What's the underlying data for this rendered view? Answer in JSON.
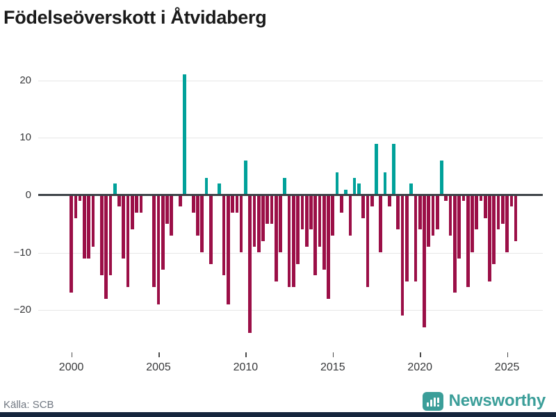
{
  "title": "Födelseöverskott i Åtvidaberg",
  "source": "Källa: SCB",
  "brand": {
    "name": "Newsworthy",
    "color": "#3b9e99",
    "icon": "speech-bubble-bar-chart-icon"
  },
  "colors": {
    "positive_bar": "#00a19a",
    "negative_bar": "#9b0f47",
    "zero_line": "#3d4247",
    "gridline": "#e6e6e6",
    "title_text": "#1a1a1a",
    "axis_text": "#37383a",
    "source_text": "#707781",
    "bottom_strip": "#15253c",
    "background": "#ffffff"
  },
  "chart_data": {
    "type": "bar",
    "title": "Födelseöverskott i Åtvidaberg",
    "xlabel": "",
    "ylabel": "",
    "period": "quarterly",
    "start_year": 2000,
    "start_quarter": 1,
    "ylim": [
      -27,
      23
    ],
    "grid": "horizontal",
    "y_ticks": [
      {
        "value": 20,
        "label": "20"
      },
      {
        "value": 10,
        "label": "10"
      },
      {
        "value": 0,
        "label": "0"
      },
      {
        "value": -10,
        "label": "−10"
      },
      {
        "value": -20,
        "label": "−20"
      }
    ],
    "x_ticks": [
      {
        "year": 2000,
        "label": "2000"
      },
      {
        "year": 2005,
        "label": "2005"
      },
      {
        "year": 2010,
        "label": "2010"
      },
      {
        "year": 2015,
        "label": "2015"
      },
      {
        "year": 2020,
        "label": "2020"
      },
      {
        "year": 2025,
        "label": "2025"
      }
    ],
    "series": [
      {
        "name": "Födelseöverskott",
        "values": [
          -17,
          -4,
          -1,
          -11,
          -11,
          -9,
          0,
          -14,
          -18,
          -14,
          2,
          -2,
          -11,
          -16,
          -6,
          -3,
          -3,
          0,
          0,
          -16,
          -19,
          -13,
          -5,
          -7,
          0,
          -2,
          21,
          0,
          -3,
          -7,
          -10,
          3,
          -12,
          0,
          2,
          -14,
          -19,
          -3,
          -3,
          -10,
          6,
          -24,
          -9,
          -10,
          -8,
          -5,
          -5,
          -15,
          -10,
          3,
          -16,
          -16,
          -12,
          -6,
          -9,
          -6,
          -14,
          -9,
          -13,
          -18,
          -7,
          4,
          -3,
          1,
          -7,
          3,
          2,
          -4,
          -16,
          -2,
          9,
          -10,
          4,
          -2,
          9,
          -6,
          -21,
          -15,
          2,
          -15,
          -6,
          -23,
          -9,
          -7,
          -6,
          6,
          -1,
          -7,
          -17,
          -11,
          -1,
          -16,
          -10,
          -6,
          -1,
          -4,
          -15,
          -12,
          -6,
          -5,
          -10,
          -2,
          -8
        ]
      }
    ]
  }
}
